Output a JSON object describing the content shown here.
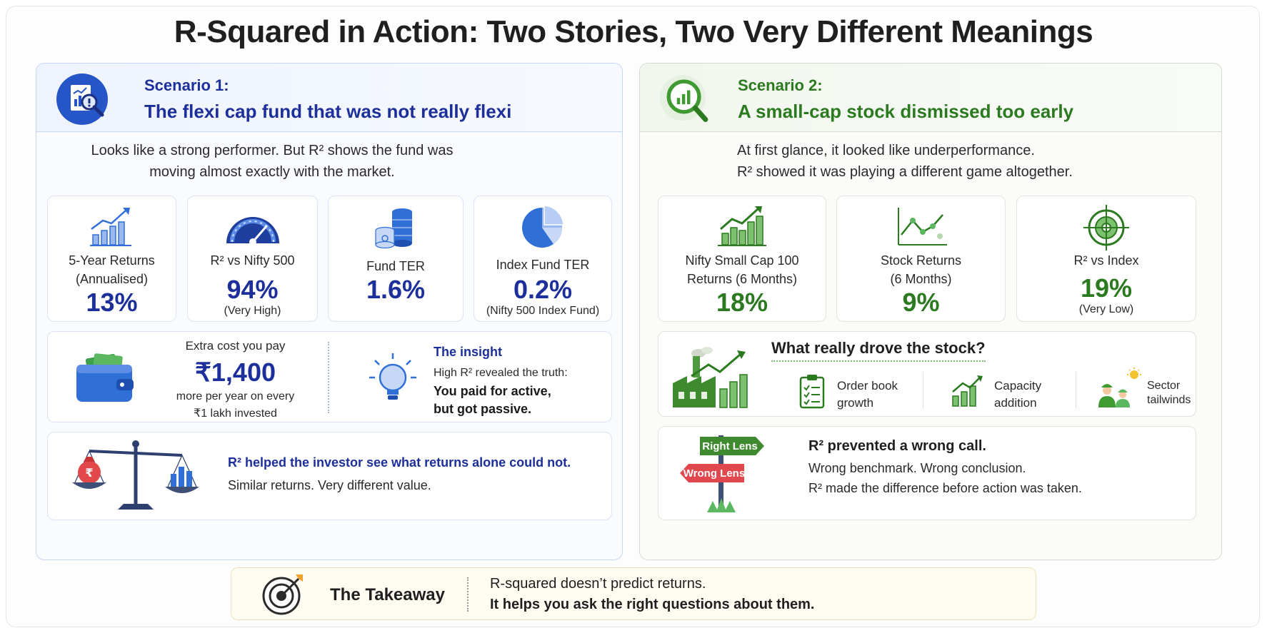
{
  "title": "R-Squared in Action: Two Stories, Two Very Different Meanings",
  "scenario1": {
    "label": "Scenario 1:",
    "title": "The flexi cap fund that was not really flexi",
    "intro_line1": "Looks like a strong performer. But R² shows the fund was",
    "intro_line2": "moving almost exactly with the market.",
    "metrics": [
      {
        "label1": "5-Year Returns",
        "label2": "(Annualised)",
        "value": "13%",
        "sub": "",
        "icon": "bar-chart-up-icon"
      },
      {
        "label1": "R² vs Nifty 500",
        "label2": "",
        "value": "94%",
        "sub": "(Very High)",
        "icon": "gauge-icon"
      },
      {
        "label1": "Fund TER",
        "label2": "",
        "value": "1.6%",
        "sub": "",
        "icon": "coin-stack-icon"
      },
      {
        "label1": "Index Fund TER",
        "label2": "",
        "value": "0.2%",
        "sub": "(Nifty 500 Index Fund)",
        "icon": "pie-chart-icon"
      }
    ],
    "cost": {
      "label": "Extra cost you pay",
      "value": "₹1,400",
      "line1": "more per year on every",
      "line2": "₹1 lakh invested"
    },
    "insight": {
      "title": "The insight",
      "line1": "High R² revealed the truth:",
      "line2": "You paid for active,",
      "line3": "but got passive."
    },
    "summary": {
      "headline": "R² helped the investor see what returns alone could not.",
      "sub": "Similar returns. Very different value."
    }
  },
  "scenario2": {
    "label": "Scenario 2:",
    "title": "A small-cap stock dismissed too early",
    "intro_line1": "At first glance, it looked like underperformance.",
    "intro_line2": "R² showed it was playing a different game altogether.",
    "metrics": [
      {
        "label1": "Nifty Small Cap 100",
        "label2": "Returns (6 Months)",
        "value": "18%",
        "sub": "",
        "icon": "growth-bars-icon"
      },
      {
        "label1": "Stock Returns",
        "label2": "(6 Months)",
        "value": "9%",
        "sub": "",
        "icon": "line-chart-icon"
      },
      {
        "label1": "R² vs Index",
        "label2": "",
        "value": "19%",
        "sub": "(Very Low)",
        "icon": "target-icon"
      }
    ],
    "drivers": {
      "title": "What really drove the stock?",
      "items": [
        {
          "line1": "Order book",
          "line2": "growth",
          "icon": "clipboard-icon"
        },
        {
          "line1": "Capacity",
          "line2": "addition",
          "icon": "capacity-chart-icon"
        },
        {
          "line1": "Sector",
          "line2": "tailwinds",
          "icon": "workers-sun-icon"
        }
      ]
    },
    "call": {
      "sign_right": "Right Lens",
      "sign_wrong": "Wrong Lens",
      "headline": "R² prevented a wrong call.",
      "line1": "Wrong benchmark. Wrong conclusion.",
      "line2": "R² made the difference before action was taken."
    }
  },
  "takeaway": {
    "label": "The Takeaway",
    "line1": "R-squared doesn’t predict returns.",
    "line2": "It helps you ask the right questions about them."
  },
  "colors": {
    "blue": "#1c2f9a",
    "green": "#2b7a20",
    "accent_blue": "#2f6fd6",
    "accent_green": "#3f9a32",
    "takeaway_bg": "#fffcf2"
  }
}
